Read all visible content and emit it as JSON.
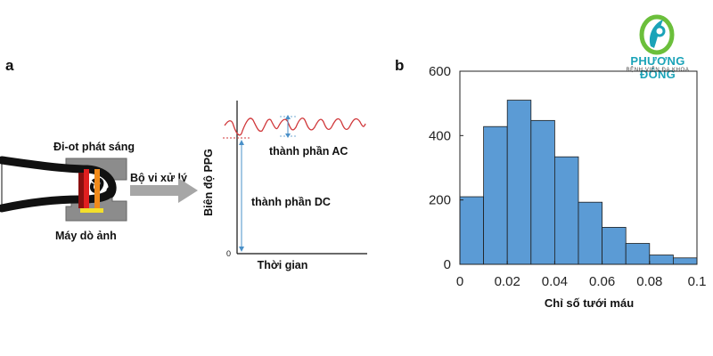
{
  "logo": {
    "name": "PHƯƠNG ĐÔNG",
    "tagline": "BỆNH VIỆN ĐA KHOA",
    "accent": "#6bbf3b",
    "brand": "#1aa3b8"
  },
  "panel_a": {
    "label": "a",
    "diagram": {
      "led_label": "Đi-ot phát sáng",
      "detector_label": "Máy dò ảnh",
      "processor_label": "Bộ vi xử lý",
      "ylabel": "Biên độ PPG",
      "xlabel": "Thời gian",
      "origin_label": "0",
      "ac_label": "thành phần AC",
      "dc_label": "thành phần DC",
      "signal_color": "#d0373a",
      "arrow_color": "#4a90c8"
    }
  },
  "panel_b": {
    "label": "b",
    "chart_data": {
      "type": "bar",
      "title": "",
      "xlabel": "Chỉ số tưới máu",
      "ylabel": "",
      "bin_edges": [
        0,
        0.01,
        0.02,
        0.03,
        0.04,
        0.05,
        0.06,
        0.07,
        0.08,
        0.09,
        0.1
      ],
      "values": [
        210,
        428,
        510,
        447,
        334,
        193,
        115,
        65,
        29,
        20
      ],
      "xlim": [
        0,
        0.1
      ],
      "ylim": [
        0,
        600
      ],
      "xticks": [
        "0",
        "0.02",
        "0.04",
        "0.06",
        "0.08",
        "0.1"
      ],
      "yticks": [
        "0",
        "200",
        "400",
        "600"
      ],
      "bar_color": "#5b9bd5",
      "edge_color": "#1f1f1f",
      "grid": false
    }
  }
}
